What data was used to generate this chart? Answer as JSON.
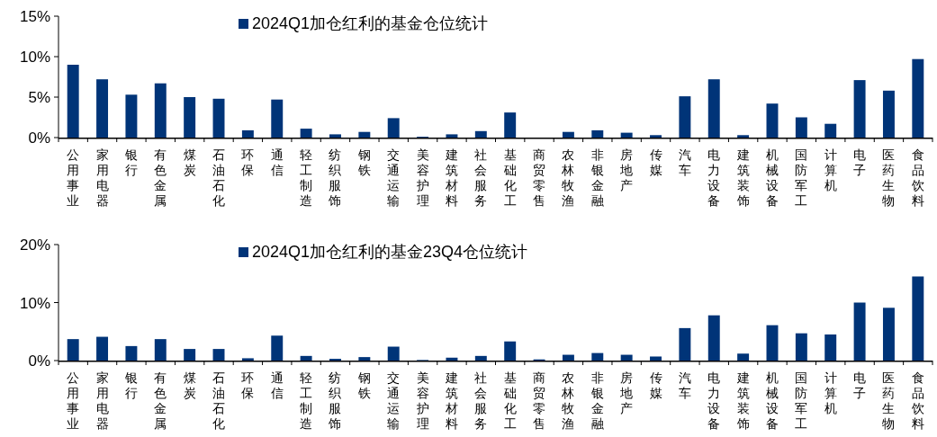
{
  "chart_data": [
    {
      "type": "bar",
      "categories": [
        "公用事业",
        "家用电器",
        "银行",
        "有色金属",
        "煤炭",
        "石油石化",
        "环保",
        "通信",
        "轻工制造",
        "纺织服饰",
        "钢铁",
        "交通运输",
        "美容护理",
        "建筑材料",
        "社会服务",
        "基础化工",
        "商贸零售",
        "农林牧渔",
        "非银金融",
        "房地产",
        "传媒",
        "汽车",
        "电力设备",
        "建筑装饰",
        "机械设备",
        "国防军工",
        "计算机",
        "电子",
        "医药生物",
        "食品饮料"
      ],
      "series": [
        {
          "name": "2024Q1加仓红利的基金仓位统计",
          "color": "#003478",
          "values": [
            9.0,
            7.2,
            5.3,
            6.7,
            5.0,
            4.8,
            0.9,
            4.7,
            1.1,
            0.4,
            0.7,
            2.4,
            0.1,
            0.4,
            0.8,
            3.1,
            0,
            0.7,
            0.9,
            0.6,
            0.3,
            5.1,
            7.2,
            0.3,
            4.2,
            2.5,
            1.7,
            7.1,
            5.8,
            9.7
          ]
        }
      ],
      "ylim": [
        0,
        15
      ],
      "yticks": [
        {
          "value": 0,
          "label": "0%"
        },
        {
          "value": 5,
          "label": "5%"
        },
        {
          "value": 10,
          "label": "10%"
        },
        {
          "value": 15,
          "label": "15%"
        }
      ],
      "legend": "top"
    },
    {
      "type": "bar",
      "categories": [
        "公用事业",
        "家用电器",
        "银行",
        "有色金属",
        "煤炭",
        "石油石化",
        "环保",
        "通信",
        "轻工制造",
        "纺织服饰",
        "钢铁",
        "交通运输",
        "美容护理",
        "建筑材料",
        "社会服务",
        "基础化工",
        "商贸零售",
        "农林牧渔",
        "非银金融",
        "房地产",
        "传媒",
        "汽车",
        "电力设备",
        "建筑装饰",
        "机械设备",
        "国防军工",
        "计算机",
        "电子",
        "医药生物",
        "食品饮料"
      ],
      "series": [
        {
          "name": "2024Q1加仓红利的基金23Q4仓位统计",
          "color": "#003478",
          "values": [
            3.7,
            4.1,
            2.5,
            3.7,
            2.0,
            2.0,
            0.4,
            4.3,
            0.8,
            0.3,
            0.6,
            2.4,
            0.1,
            0.5,
            0.8,
            3.3,
            0.2,
            1.0,
            1.3,
            1.0,
            0.7,
            5.6,
            7.8,
            1.2,
            6.1,
            4.7,
            4.5,
            10.0,
            9.1,
            14.5
          ]
        }
      ],
      "ylim": [
        0,
        20
      ],
      "yticks": [
        {
          "value": 0,
          "label": "0%"
        },
        {
          "value": 10,
          "label": "10%"
        },
        {
          "value": 20,
          "label": "20%"
        }
      ],
      "legend": "top"
    }
  ]
}
